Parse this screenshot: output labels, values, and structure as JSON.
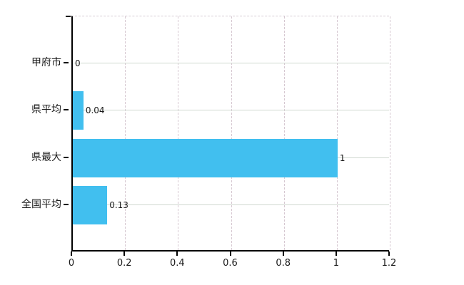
{
  "chart_data": {
    "type": "bar",
    "orientation": "horizontal",
    "title": "",
    "categories": [
      "甲府市",
      "県平均",
      "県最大",
      "全国平均"
    ],
    "values": [
      0,
      0.04,
      1,
      0.13
    ],
    "value_labels": [
      "0",
      "0.04",
      "1",
      "0.13"
    ],
    "x_ticks": [
      0,
      0.2,
      0.4,
      0.6,
      0.8,
      1,
      1.2
    ],
    "x_tick_labels": [
      "0",
      "0.2",
      "0.4",
      "0.6",
      "0.8",
      "1",
      "1.2"
    ],
    "xlim": [
      0,
      1.2
    ],
    "grid": true,
    "legend": false,
    "bar_color": "#41bfef",
    "axis_color": "#000000",
    "horizontal_grid_color": "#cfd8cf",
    "vertical_grid_color": "#d6c8d1",
    "text_color": "#1a1a1a"
  }
}
